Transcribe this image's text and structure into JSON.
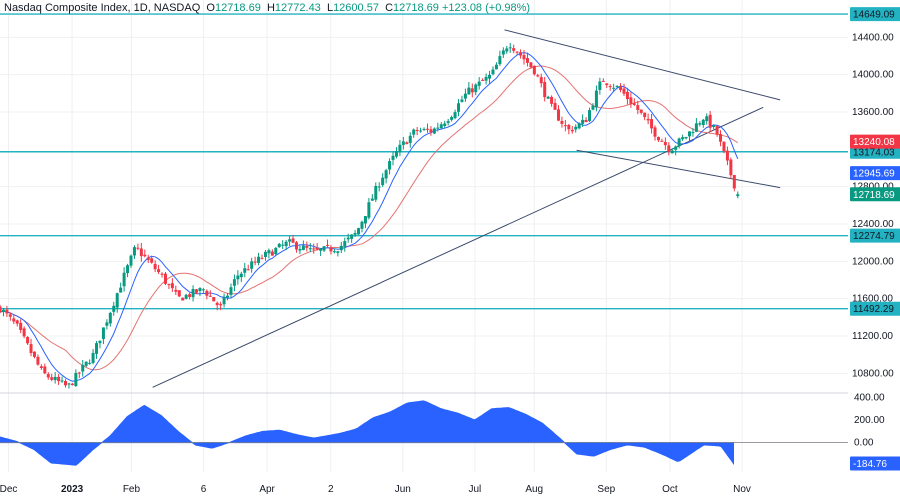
{
  "header": {
    "symbol": "Nasdaq Composite Index, 1D, NASDAQ",
    "o_key": "O",
    "o": "12718.69",
    "h_key": "H",
    "h": "12772.43",
    "l_key": "L",
    "l": "12600.57",
    "c_key": "C",
    "c": "12718.69",
    "change": "+123.08 (+0.98%)"
  },
  "colors": {
    "up": "#089981",
    "down": "#f23645",
    "level": "#22b2c2",
    "ma_fast": "#2962ff",
    "ma_slow": "#e57373",
    "trend": "#3b4a6b",
    "osc": "#2962ff",
    "grid": "#eef0f3"
  },
  "chart_data": [
    {
      "type": "candlestick",
      "title": "",
      "y_ticks": [
        "14400.00",
        "14000.00",
        "13600.00",
        "12800.00",
        "12400.00",
        "12000.00",
        "11600.00",
        "11200.00",
        "10800.00"
      ],
      "x_ticks": [
        "Dec",
        "2023",
        "Feb",
        "6",
        "Apr",
        "2",
        "Jun",
        "Jul",
        "Aug",
        "Sep",
        "Oct",
        "Nov"
      ],
      "ylim": [
        10600,
        14800
      ],
      "levels": [
        {
          "value": 14649.09,
          "label": "14649.09"
        },
        {
          "value": 13174.03,
          "label": "13174.03"
        },
        {
          "value": 12274.79,
          "label": "12274.79"
        },
        {
          "value": 11492.29,
          "label": "11492.29"
        }
      ],
      "price_labels": [
        {
          "value": 13240.08,
          "label": "13240.08",
          "kind": "ma_slow"
        },
        {
          "value": 12945.69,
          "label": "12945.69",
          "kind": "ma_fast"
        },
        {
          "value": 12718.69,
          "label": "12718.69",
          "kind": "last"
        }
      ],
      "trendlines": [
        {
          "from": [
            0.18,
            10650
          ],
          "to": [
            0.9,
            13650
          ]
        },
        {
          "from": [
            0.595,
            14480
          ],
          "to": [
            0.92,
            13730
          ]
        },
        {
          "from": [
            0.68,
            13190
          ],
          "to": [
            0.92,
            12790
          ]
        }
      ],
      "anchors": [
        [
          0.0,
          11500
        ],
        [
          0.02,
          11300
        ],
        [
          0.05,
          10800
        ],
        [
          0.08,
          10650
        ],
        [
          0.11,
          11000
        ],
        [
          0.14,
          11700
        ],
        [
          0.16,
          12150
        ],
        [
          0.19,
          11850
        ],
        [
          0.21,
          11600
        ],
        [
          0.24,
          11700
        ],
        [
          0.26,
          11500
        ],
        [
          0.28,
          11850
        ],
        [
          0.31,
          12050
        ],
        [
          0.34,
          12200
        ],
        [
          0.37,
          12100
        ],
        [
          0.4,
          12150
        ],
        [
          0.42,
          12300
        ],
        [
          0.45,
          12900
        ],
        [
          0.47,
          13200
        ],
        [
          0.49,
          13400
        ],
        [
          0.51,
          13400
        ],
        [
          0.53,
          13550
        ],
        [
          0.55,
          13800
        ],
        [
          0.58,
          14000
        ],
        [
          0.6,
          14350
        ],
        [
          0.62,
          14150
        ],
        [
          0.63,
          14050
        ],
        [
          0.65,
          13650
        ],
        [
          0.67,
          13400
        ],
        [
          0.69,
          13500
        ],
        [
          0.71,
          13950
        ],
        [
          0.73,
          13850
        ],
        [
          0.75,
          13650
        ],
        [
          0.77,
          13400
        ],
        [
          0.79,
          13200
        ],
        [
          0.81,
          13350
        ],
        [
          0.83,
          13550
        ],
        [
          0.845,
          13380
        ],
        [
          0.86,
          12980
        ],
        [
          0.87,
          12718.69
        ]
      ],
      "ma_fast_end": 12945.69,
      "ma_slow_end": 13240.08
    },
    {
      "type": "area",
      "title": "",
      "y_ticks": [
        "400.00",
        "200.00",
        "0.00"
      ],
      "ylim": [
        -260,
        430
      ],
      "last_value": -184.76,
      "last_label": "-184.76",
      "anchors": [
        [
          0.0,
          50
        ],
        [
          0.02,
          10
        ],
        [
          0.04,
          -60
        ],
        [
          0.06,
          -180
        ],
        [
          0.09,
          -200
        ],
        [
          0.11,
          -60
        ],
        [
          0.13,
          60
        ],
        [
          0.15,
          230
        ],
        [
          0.17,
          330
        ],
        [
          0.19,
          240
        ],
        [
          0.21,
          100
        ],
        [
          0.23,
          -20
        ],
        [
          0.25,
          -50
        ],
        [
          0.27,
          0
        ],
        [
          0.29,
          60
        ],
        [
          0.31,
          100
        ],
        [
          0.33,
          110
        ],
        [
          0.35,
          70
        ],
        [
          0.37,
          40
        ],
        [
          0.4,
          80
        ],
        [
          0.42,
          120
        ],
        [
          0.44,
          220
        ],
        [
          0.46,
          270
        ],
        [
          0.48,
          350
        ],
        [
          0.5,
          370
        ],
        [
          0.52,
          300
        ],
        [
          0.54,
          260
        ],
        [
          0.56,
          200
        ],
        [
          0.58,
          300
        ],
        [
          0.6,
          310
        ],
        [
          0.62,
          250
        ],
        [
          0.64,
          170
        ],
        [
          0.66,
          40
        ],
        [
          0.68,
          -100
        ],
        [
          0.7,
          -120
        ],
        [
          0.72,
          -60
        ],
        [
          0.74,
          -20
        ],
        [
          0.76,
          -40
        ],
        [
          0.78,
          -100
        ],
        [
          0.8,
          -170
        ],
        [
          0.81,
          -120
        ],
        [
          0.83,
          -20
        ],
        [
          0.85,
          -30
        ],
        [
          0.865,
          -184.76
        ]
      ]
    }
  ]
}
